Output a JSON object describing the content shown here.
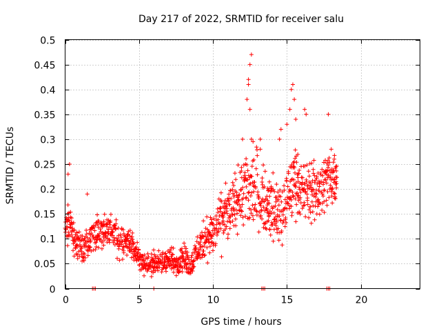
{
  "chart_data": {
    "type": "scatter",
    "title": "Day 217 of 2022, SRMTID for receiver salu",
    "xlabel": "GPS time / hours",
    "ylabel": "SRMTID / TECUs",
    "xlim": [
      0,
      24
    ],
    "ylim": [
      0,
      0.5
    ],
    "grid": true,
    "x_ticks": [
      0,
      5,
      10,
      15,
      20
    ],
    "x_tick_labels": [
      "0",
      "5",
      "10",
      "15",
      "20"
    ],
    "y_ticks": [
      0,
      0.05,
      0.1,
      0.15,
      0.2,
      0.25,
      0.3,
      0.35,
      0.4,
      0.45,
      0.5
    ],
    "y_tick_labels": [
      "0",
      "0.05",
      "0.1",
      "0.15",
      "0.2",
      "0.25",
      "0.3",
      "0.35",
      "0.4",
      "0.45",
      "0.5"
    ],
    "marker": "+",
    "color": "#ff0000",
    "series": [
      {
        "name": "SRMTID",
        "trend": [
          [
            0.0,
            0.11
          ],
          [
            0.3,
            0.14
          ],
          [
            0.6,
            0.1
          ],
          [
            1.0,
            0.08
          ],
          [
            1.5,
            0.09
          ],
          [
            2.0,
            0.12
          ],
          [
            2.5,
            0.11
          ],
          [
            3.0,
            0.12
          ],
          [
            3.5,
            0.1
          ],
          [
            4.0,
            0.1
          ],
          [
            4.5,
            0.09
          ],
          [
            5.0,
            0.06
          ],
          [
            5.5,
            0.05
          ],
          [
            6.0,
            0.05
          ],
          [
            6.5,
            0.05
          ],
          [
            7.0,
            0.06
          ],
          [
            7.5,
            0.05
          ],
          [
            8.0,
            0.06
          ],
          [
            8.5,
            0.05
          ],
          [
            9.0,
            0.08
          ],
          [
            9.5,
            0.1
          ],
          [
            10.0,
            0.11
          ],
          [
            10.5,
            0.13
          ],
          [
            11.0,
            0.15
          ],
          [
            11.5,
            0.17
          ],
          [
            12.0,
            0.19
          ],
          [
            12.5,
            0.2
          ],
          [
            13.0,
            0.2
          ],
          [
            13.5,
            0.17
          ],
          [
            14.0,
            0.16
          ],
          [
            14.5,
            0.15
          ],
          [
            15.0,
            0.17
          ],
          [
            15.5,
            0.22
          ],
          [
            16.0,
            0.19
          ],
          [
            16.5,
            0.2
          ],
          [
            17.0,
            0.2
          ],
          [
            17.5,
            0.21
          ],
          [
            18.0,
            0.22
          ],
          [
            18.4,
            0.22
          ]
        ],
        "spread": [
          [
            0.0,
            0.04
          ],
          [
            1.0,
            0.035
          ],
          [
            2.0,
            0.04
          ],
          [
            3.5,
            0.04
          ],
          [
            5.0,
            0.025
          ],
          [
            8.0,
            0.025
          ],
          [
            9.0,
            0.035
          ],
          [
            10.0,
            0.05
          ],
          [
            11.5,
            0.06
          ],
          [
            12.5,
            0.09
          ],
          [
            13.5,
            0.06
          ],
          [
            15.0,
            0.07
          ],
          [
            16.0,
            0.07
          ],
          [
            18.0,
            0.06
          ],
          [
            18.4,
            0.05
          ]
        ],
        "peaks": [
          [
            0.3,
            0.25
          ],
          [
            0.2,
            0.23
          ],
          [
            1.5,
            0.19
          ],
          [
            12.0,
            0.3
          ],
          [
            12.3,
            0.38
          ],
          [
            12.4,
            0.42
          ],
          [
            12.5,
            0.45
          ],
          [
            12.6,
            0.47
          ],
          [
            12.4,
            0.41
          ],
          [
            12.5,
            0.36
          ],
          [
            12.6,
            0.3
          ],
          [
            12.2,
            0.25
          ],
          [
            13.2,
            0.28
          ],
          [
            13.2,
            0.3
          ],
          [
            14.5,
            0.3
          ],
          [
            14.6,
            0.32
          ],
          [
            15.0,
            0.33
          ],
          [
            15.2,
            0.36
          ],
          [
            15.4,
            0.41
          ],
          [
            15.3,
            0.4
          ],
          [
            15.5,
            0.38
          ],
          [
            15.6,
            0.34
          ],
          [
            16.2,
            0.36
          ],
          [
            16.3,
            0.35
          ],
          [
            17.8,
            0.35
          ],
          [
            18.0,
            0.28
          ],
          [
            18.2,
            0.26
          ]
        ],
        "zero_points": [
          1.85,
          1.95,
          2.05,
          6.0,
          13.3,
          13.4,
          13.5,
          17.7,
          17.8,
          17.9
        ]
      }
    ]
  }
}
